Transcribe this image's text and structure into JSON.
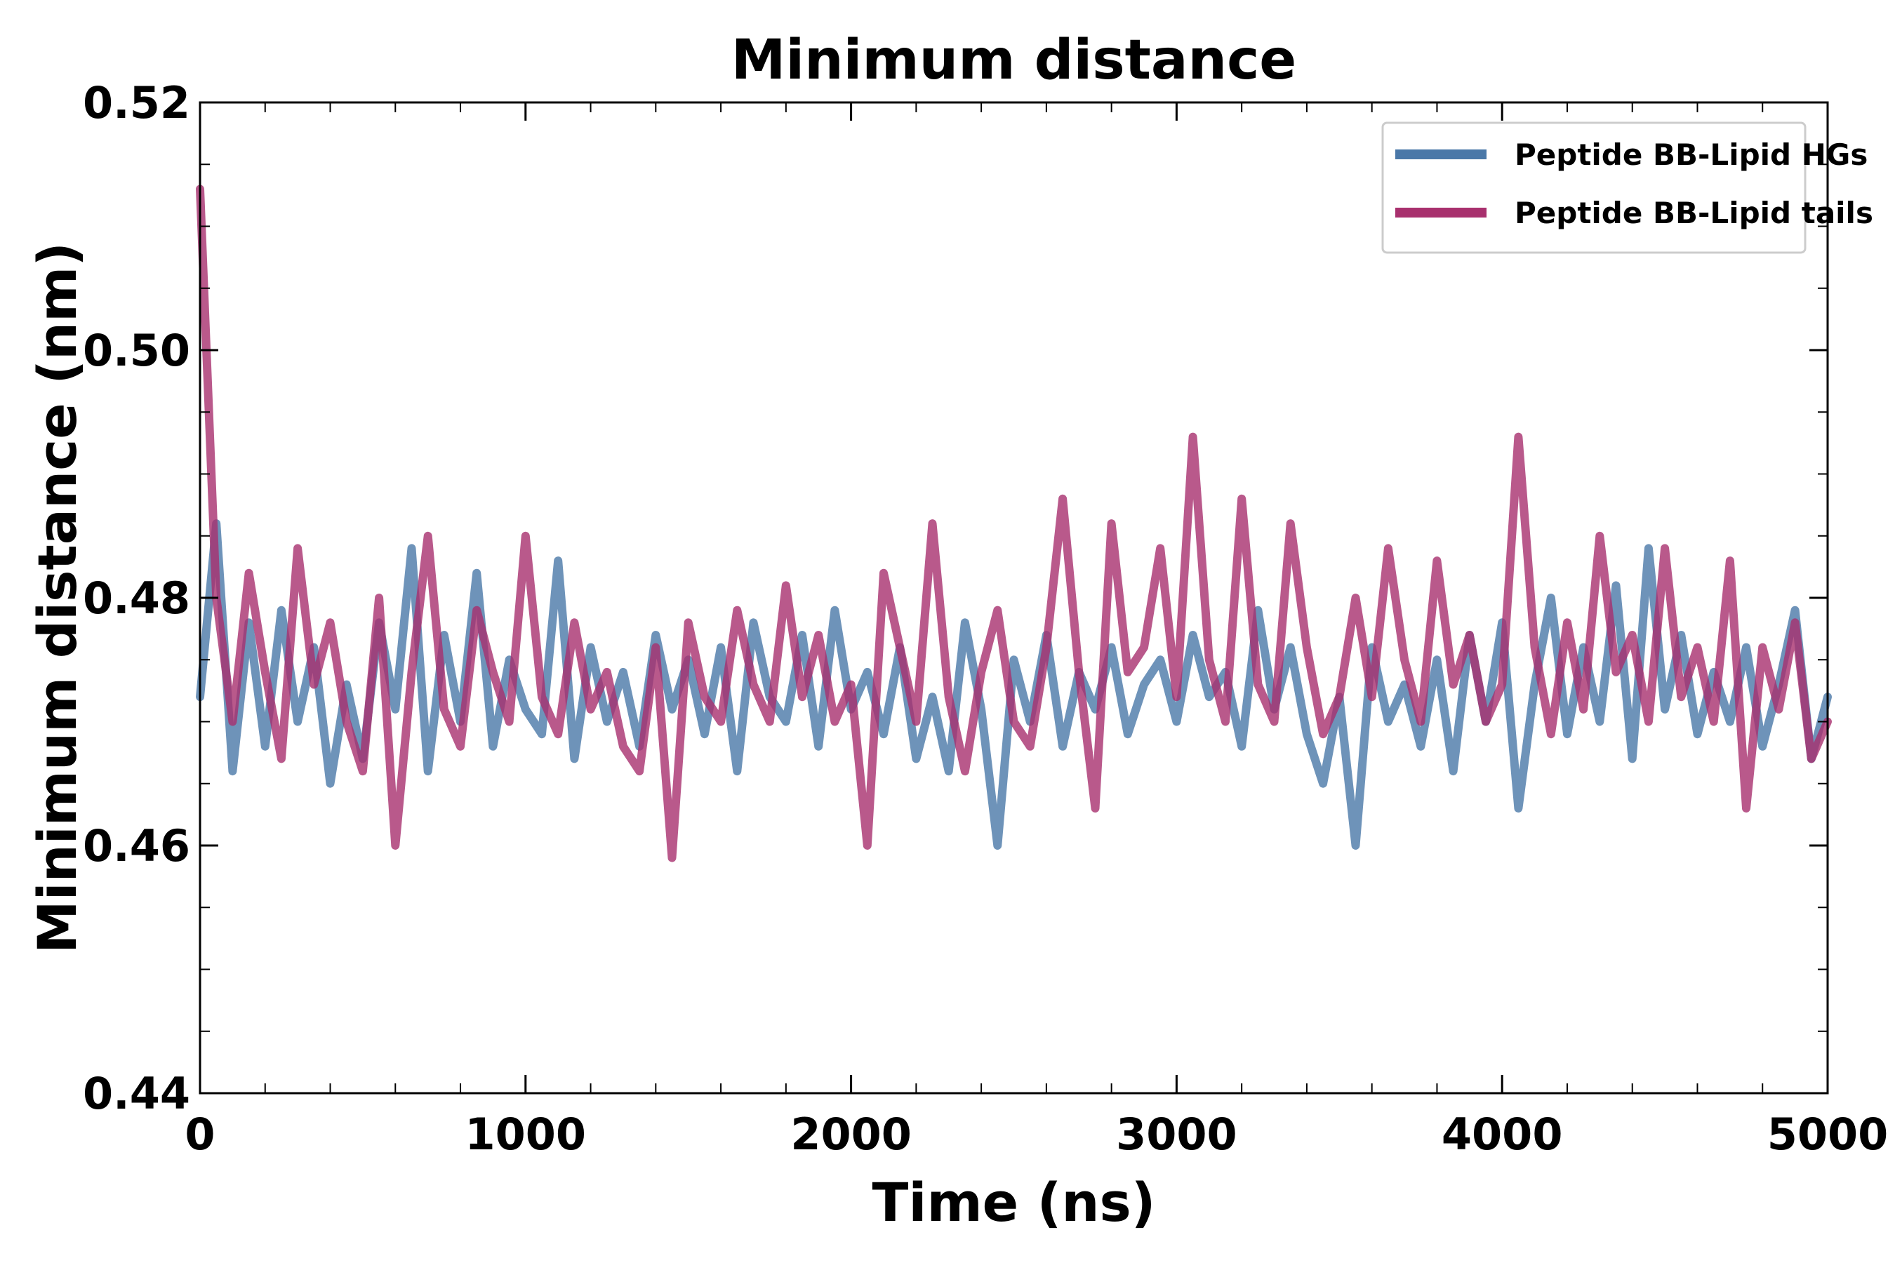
{
  "chart_data": {
    "type": "line",
    "title": "Minimum distance",
    "xlabel": "Time (ns)",
    "ylabel": "Minimum distance (nm)",
    "xlim": [
      0,
      5000
    ],
    "ylim": [
      0.44,
      0.52
    ],
    "xticks": [
      0,
      1000,
      2000,
      3000,
      4000,
      5000
    ],
    "xtick_labels": [
      "0",
      "1000",
      "2000",
      "3000",
      "4000",
      "5000"
    ],
    "yticks": [
      0.44,
      0.46,
      0.48,
      0.5,
      0.52
    ],
    "ytick_labels": [
      "0.44",
      "0.46",
      "0.48",
      "0.50",
      "0.52"
    ],
    "x_minor_step": 200,
    "y_minor_step": 0.005,
    "grid": false,
    "legend_position": "top-right",
    "x": [
      0,
      50,
      100,
      150,
      200,
      250,
      300,
      350,
      400,
      450,
      500,
      550,
      600,
      650,
      700,
      750,
      800,
      850,
      900,
      950,
      1000,
      1050,
      1100,
      1150,
      1200,
      1250,
      1300,
      1350,
      1400,
      1450,
      1500,
      1550,
      1600,
      1650,
      1700,
      1750,
      1800,
      1850,
      1900,
      1950,
      2000,
      2050,
      2100,
      2150,
      2200,
      2250,
      2300,
      2350,
      2400,
      2450,
      2500,
      2550,
      2600,
      2650,
      2700,
      2750,
      2800,
      2850,
      2900,
      2950,
      3000,
      3050,
      3100,
      3150,
      3200,
      3250,
      3300,
      3350,
      3400,
      3450,
      3500,
      3550,
      3600,
      3650,
      3700,
      3750,
      3800,
      3850,
      3900,
      3950,
      4000,
      4050,
      4100,
      4150,
      4200,
      4250,
      4300,
      4350,
      4400,
      4450,
      4500,
      4550,
      4600,
      4650,
      4700,
      4750,
      4800,
      4850,
      4900,
      4950,
      5000
    ],
    "series": [
      {
        "name": "Peptide BB-Lipid HGs",
        "color": "#4a78a8",
        "values": [
          0.472,
          0.486,
          0.466,
          0.478,
          0.468,
          0.479,
          0.47,
          0.476,
          0.465,
          0.473,
          0.467,
          0.478,
          0.471,
          0.484,
          0.466,
          0.477,
          0.47,
          0.482,
          0.468,
          0.475,
          0.471,
          0.469,
          0.483,
          0.467,
          0.476,
          0.47,
          0.474,
          0.468,
          0.477,
          0.471,
          0.475,
          0.469,
          0.476,
          0.466,
          0.478,
          0.472,
          0.47,
          0.477,
          0.468,
          0.479,
          0.471,
          0.474,
          0.469,
          0.476,
          0.467,
          0.472,
          0.466,
          0.478,
          0.471,
          0.46,
          0.475,
          0.47,
          0.477,
          0.468,
          0.474,
          0.471,
          0.476,
          0.469,
          0.473,
          0.475,
          0.47,
          0.477,
          0.472,
          0.474,
          0.468,
          0.479,
          0.471,
          0.476,
          0.469,
          0.465,
          0.472,
          0.46,
          0.476,
          0.47,
          0.473,
          0.468,
          0.475,
          0.466,
          0.477,
          0.47,
          0.478,
          0.463,
          0.473,
          0.48,
          0.469,
          0.476,
          0.47,
          0.481,
          0.467,
          0.484,
          0.471,
          0.477,
          0.469,
          0.474,
          0.47,
          0.476,
          0.468,
          0.473,
          0.479,
          0.467,
          0.472
        ]
      },
      {
        "name": "Peptide BB-Lipid tails",
        "color": "#a8306e",
        "values": [
          0.513,
          0.48,
          0.47,
          0.482,
          0.474,
          0.467,
          0.484,
          0.473,
          0.478,
          0.47,
          0.466,
          0.48,
          0.46,
          0.474,
          0.485,
          0.471,
          0.468,
          0.479,
          0.474,
          0.47,
          0.485,
          0.472,
          0.469,
          0.478,
          0.471,
          0.474,
          0.468,
          0.466,
          0.476,
          0.459,
          0.478,
          0.472,
          0.47,
          0.479,
          0.473,
          0.47,
          0.481,
          0.472,
          0.477,
          0.47,
          0.473,
          0.46,
          0.482,
          0.476,
          0.47,
          0.486,
          0.472,
          0.466,
          0.474,
          0.479,
          0.47,
          0.468,
          0.476,
          0.488,
          0.474,
          0.463,
          0.486,
          0.474,
          0.476,
          0.484,
          0.472,
          0.493,
          0.475,
          0.47,
          0.488,
          0.473,
          0.47,
          0.486,
          0.476,
          0.469,
          0.472,
          0.48,
          0.472,
          0.484,
          0.475,
          0.47,
          0.483,
          0.473,
          0.477,
          0.47,
          0.473,
          0.493,
          0.476,
          0.469,
          0.478,
          0.471,
          0.485,
          0.474,
          0.477,
          0.47,
          0.484,
          0.472,
          0.476,
          0.47,
          0.483,
          0.463,
          0.476,
          0.471,
          0.478,
          0.467,
          0.47
        ]
      }
    ]
  }
}
